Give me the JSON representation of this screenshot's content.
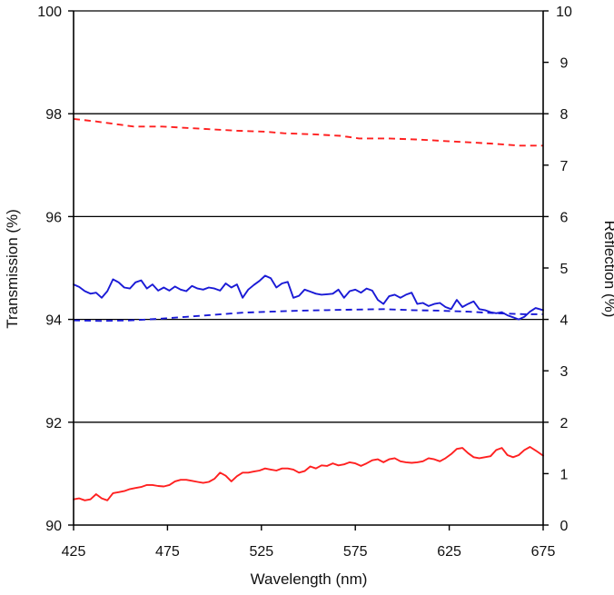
{
  "chart_data": {
    "type": "line",
    "title": "",
    "xlabel": "Wavelength (nm)",
    "ylabel": "Transmission (%)",
    "y2label": "Reflection (%)",
    "xlim": [
      425,
      675
    ],
    "ylim": [
      90,
      100
    ],
    "y2lim": [
      0,
      10
    ],
    "xticks": [
      "425",
      "475",
      "525",
      "575",
      "625",
      "675"
    ],
    "yticks": [
      "90",
      "92",
      "94",
      "96",
      "98",
      "100"
    ],
    "y2ticks": [
      "0",
      "1",
      "2",
      "3",
      "4",
      "5",
      "6",
      "7",
      "8",
      "9",
      "10"
    ],
    "gridlines_y": [
      92,
      94,
      96,
      98
    ],
    "series": [
      {
        "name": "red-dashed",
        "axis": "left",
        "color": "#ff2020",
        "style": "dashed",
        "x": [
          425,
          437,
          447,
          457,
          472,
          487,
          497,
          512,
          527,
          537,
          552,
          567,
          577,
          592,
          607,
          617,
          632,
          647,
          662,
          675
        ],
        "values": [
          97.9,
          97.85,
          97.8,
          97.75,
          97.75,
          97.72,
          97.7,
          97.67,
          97.65,
          97.62,
          97.6,
          97.57,
          97.52,
          97.52,
          97.5,
          97.48,
          97.45,
          97.42,
          97.38,
          97.38
        ]
      },
      {
        "name": "blue-solid",
        "axis": "left",
        "color": "#1a1ad6",
        "style": "solid",
        "x": [
          425,
          428,
          431,
          434,
          437,
          440,
          443,
          446,
          449,
          452,
          455,
          458,
          461,
          464,
          467,
          470,
          473,
          476,
          479,
          482,
          485,
          488,
          491,
          494,
          497,
          500,
          503,
          506,
          509,
          512,
          515,
          518,
          521,
          524,
          527,
          530,
          533,
          536,
          539,
          542,
          545,
          548,
          551,
          554,
          557,
          560,
          563,
          566,
          569,
          572,
          575,
          578,
          581,
          584,
          587,
          590,
          593,
          596,
          599,
          602,
          605,
          608,
          611,
          614,
          617,
          620,
          623,
          626,
          629,
          632,
          635,
          638,
          641,
          644,
          647,
          650,
          653,
          656,
          659,
          662,
          665,
          668,
          671,
          675
        ],
        "values": [
          94.68,
          94.63,
          94.55,
          94.5,
          94.52,
          94.42,
          94.55,
          94.78,
          94.72,
          94.62,
          94.6,
          94.72,
          94.76,
          94.6,
          94.68,
          94.56,
          94.62,
          94.56,
          94.64,
          94.58,
          94.55,
          94.65,
          94.6,
          94.58,
          94.62,
          94.6,
          94.56,
          94.7,
          94.62,
          94.68,
          94.42,
          94.58,
          94.67,
          94.75,
          94.85,
          94.8,
          94.62,
          94.7,
          94.73,
          94.42,
          94.46,
          94.58,
          94.54,
          94.5,
          94.48,
          94.49,
          94.5,
          94.58,
          94.42,
          94.55,
          94.58,
          94.52,
          94.6,
          94.56,
          94.38,
          94.3,
          94.45,
          94.48,
          94.42,
          94.48,
          94.52,
          94.3,
          94.32,
          94.26,
          94.3,
          94.32,
          94.24,
          94.2,
          94.38,
          94.24,
          94.3,
          94.35,
          94.2,
          94.18,
          94.14,
          94.12,
          94.14,
          94.08,
          94.04,
          94.0,
          94.05,
          94.15,
          94.22,
          94.18
        ]
      },
      {
        "name": "blue-dashed",
        "axis": "left",
        "color": "#1a1ad6",
        "style": "dashed",
        "x": [
          425,
          440,
          455,
          470,
          485,
          500,
          515,
          530,
          545,
          560,
          575,
          590,
          605,
          620,
          635,
          650,
          665,
          675
        ],
        "values": [
          93.98,
          93.97,
          93.98,
          94.01,
          94.05,
          94.09,
          94.13,
          94.15,
          94.17,
          94.18,
          94.19,
          94.2,
          94.18,
          94.17,
          94.15,
          94.12,
          94.1,
          94.1
        ]
      },
      {
        "name": "red-solid",
        "axis": "left",
        "color": "#ff2020",
        "style": "solid",
        "x": [
          425,
          428,
          431,
          434,
          437,
          440,
          443,
          446,
          449,
          452,
          455,
          458,
          461,
          464,
          467,
          470,
          473,
          476,
          479,
          482,
          485,
          488,
          491,
          494,
          497,
          500,
          503,
          506,
          509,
          512,
          515,
          518,
          521,
          524,
          527,
          530,
          533,
          536,
          539,
          542,
          545,
          548,
          551,
          554,
          557,
          560,
          563,
          566,
          569,
          572,
          575,
          578,
          581,
          584,
          587,
          590,
          593,
          596,
          599,
          602,
          605,
          608,
          611,
          614,
          617,
          620,
          623,
          626,
          629,
          632,
          635,
          638,
          641,
          644,
          647,
          650,
          653,
          656,
          659,
          662,
          665,
          668,
          671,
          675
        ],
        "values": [
          90.5,
          90.52,
          90.48,
          90.5,
          90.6,
          90.52,
          90.48,
          90.62,
          90.64,
          90.66,
          90.7,
          90.72,
          90.74,
          90.78,
          90.78,
          90.76,
          90.75,
          90.78,
          90.85,
          90.88,
          90.88,
          90.86,
          90.84,
          90.82,
          90.84,
          90.9,
          91.02,
          90.96,
          90.85,
          90.95,
          91.02,
          91.02,
          91.04,
          91.06,
          91.1,
          91.08,
          91.06,
          91.1,
          91.1,
          91.08,
          91.02,
          91.05,
          91.14,
          91.1,
          91.16,
          91.15,
          91.2,
          91.16,
          91.18,
          91.22,
          91.2,
          91.15,
          91.2,
          91.26,
          91.28,
          91.22,
          91.28,
          91.3,
          91.24,
          91.22,
          91.21,
          91.22,
          91.24,
          91.3,
          91.28,
          91.24,
          91.3,
          91.38,
          91.48,
          91.5,
          91.4,
          91.32,
          91.3,
          91.32,
          91.34,
          91.46,
          91.5,
          91.36,
          91.32,
          91.36,
          91.46,
          91.52,
          91.45,
          91.35
        ]
      }
    ]
  }
}
